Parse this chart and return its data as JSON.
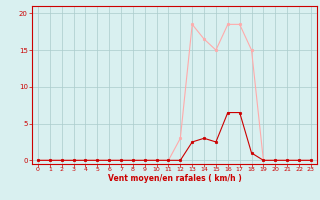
{
  "x": [
    0,
    1,
    2,
    3,
    4,
    5,
    6,
    7,
    8,
    9,
    10,
    11,
    12,
    13,
    14,
    15,
    16,
    17,
    18,
    19,
    20,
    21,
    22,
    23
  ],
  "rafales": [
    0,
    0,
    0,
    0,
    0,
    0,
    0,
    0,
    0,
    0,
    0,
    0,
    3,
    18.5,
    16.5,
    15,
    18.5,
    18.5,
    15,
    0,
    0,
    0,
    0,
    0
  ],
  "moyen": [
    0,
    0,
    0,
    0,
    0,
    0,
    0,
    0,
    0,
    0,
    0,
    0,
    0,
    2.5,
    3,
    2.5,
    6.5,
    6.5,
    1,
    0,
    0,
    0,
    0,
    0
  ],
  "rafales_color": "#ffaaaa",
  "moyen_color": "#cc0000",
  "bg_color": "#d9f0f0",
  "grid_color": "#aacccc",
  "axis_color": "#cc0000",
  "tick_color": "#cc0000",
  "xlabel": "Vent moyen/en rafales ( km/h )",
  "xlim": [
    -0.5,
    23.5
  ],
  "ylim": [
    -0.5,
    21
  ],
  "yticks": [
    0,
    5,
    10,
    15,
    20
  ],
  "xticks": [
    0,
    1,
    2,
    3,
    4,
    5,
    6,
    7,
    8,
    9,
    10,
    11,
    12,
    13,
    14,
    15,
    16,
    17,
    18,
    19,
    20,
    21,
    22,
    23
  ]
}
